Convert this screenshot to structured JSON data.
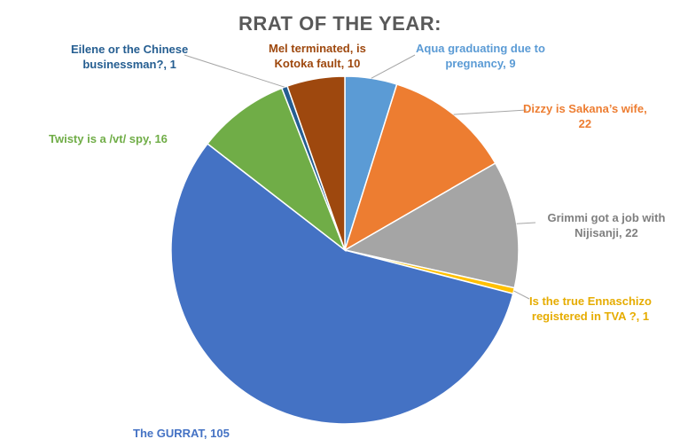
{
  "chart_data": {
    "type": "pie",
    "title": "RRAT OF THE YEAR:",
    "slices": [
      {
        "label": "Aqua graduating due to pregnancy, 9",
        "category": "Aqua graduating due to pregnancy",
        "value": 9,
        "color": "#5B9BD5"
      },
      {
        "label": "Dizzy is Sakana’s wife, 22",
        "category": "Dizzy is Sakana’s wife",
        "value": 22,
        "color": "#ED7D31"
      },
      {
        "label": "Grimmi got a job with Nijisanji, 22",
        "category": "Grimmi got a job with Nijisanji",
        "value": 22,
        "color": "#A5A5A5"
      },
      {
        "label": "Is the true Ennaschizo registered in TVA ?, 1",
        "category": "Is the true Ennaschizo registered in TVA ?",
        "value": 1,
        "color": "#FFC000"
      },
      {
        "label": "The GURRAT, 105",
        "category": "The GURRAT",
        "value": 105,
        "color": "#4472C4"
      },
      {
        "label": "Twisty is a /vt/ spy, 16",
        "category": "Twisty is a /vt/ spy",
        "value": 16,
        "color": "#70AD47"
      },
      {
        "label": "Eilene or the Chinese businessman?, 1",
        "category": "Eilene or the Chinese businessman?",
        "value": 1,
        "color": "#255E91"
      },
      {
        "label": "Mel terminated, is Kotoka fault, 10",
        "category": "Mel terminated, is Kotoka fault",
        "value": 10,
        "color": "#9E480E"
      }
    ]
  }
}
